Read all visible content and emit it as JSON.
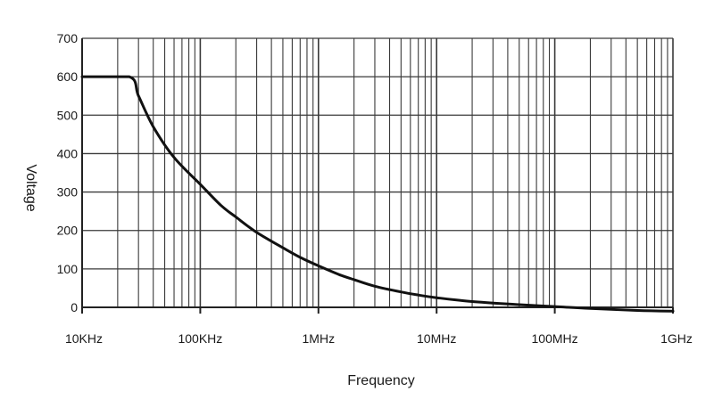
{
  "chart_data": {
    "type": "line",
    "title": "",
    "xlabel": "Frequency",
    "ylabel": "Voltage",
    "x_scale": "log",
    "xlim": [
      10000,
      1000000000
    ],
    "ylim": [
      0,
      700
    ],
    "x_ticks": [
      {
        "value": 10000,
        "label": "10KHz"
      },
      {
        "value": 100000,
        "label": "100KHz"
      },
      {
        "value": 1000000,
        "label": "1MHz"
      },
      {
        "value": 10000000,
        "label": "10MHz"
      },
      {
        "value": 100000000,
        "label": "100MHz"
      },
      {
        "value": 1000000000,
        "label": "1GHz"
      }
    ],
    "y_ticks": [
      {
        "value": 0,
        "label": "0"
      },
      {
        "value": 100,
        "label": "100"
      },
      {
        "value": 200,
        "label": "200"
      },
      {
        "value": 300,
        "label": "300"
      },
      {
        "value": 400,
        "label": "400"
      },
      {
        "value": 500,
        "label": "500"
      },
      {
        "value": 600,
        "label": "600"
      },
      {
        "value": 700,
        "label": "700"
      }
    ],
    "grid": true,
    "legend": "none",
    "series": [
      {
        "color": "#111111",
        "x": [
          10000,
          25000,
          30000,
          40000,
          60000,
          100000,
          150000,
          200000,
          300000,
          500000,
          700000,
          1000000,
          1500000,
          2000000,
          3000000,
          5000000,
          7000000,
          10000000,
          20000000,
          50000000,
          100000000,
          200000000,
          500000000,
          1000000000
        ],
        "y": [
          600,
          600,
          550,
          470,
          390,
          320,
          265,
          235,
          195,
          155,
          130,
          108,
          85,
          72,
          55,
          40,
          32,
          25,
          15,
          7,
          2,
          -3,
          -8,
          -10
        ]
      }
    ]
  },
  "colors": {
    "grid": "#3a3a3a",
    "axis": "#222222",
    "line": "#111111",
    "text": "#1a1a1a",
    "background": "#ffffff"
  }
}
